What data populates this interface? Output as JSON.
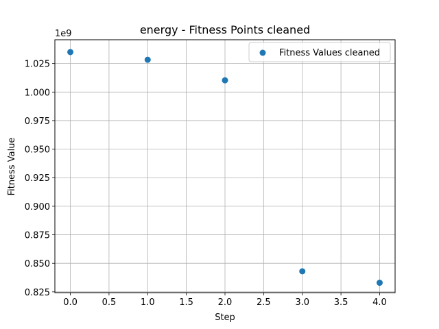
{
  "chart_data": {
    "type": "scatter",
    "title": "energy - Fitness Points cleaned",
    "xlabel": "Step",
    "ylabel": "Fitness Value",
    "y_offset_text": "1e9",
    "xlim": [
      -0.2,
      4.2
    ],
    "ylim": [
      0.8243,
      1.0458
    ],
    "grid": true,
    "legend_position": "upper right",
    "x_ticks": [
      0.0,
      0.5,
      1.0,
      1.5,
      2.0,
      2.5,
      3.0,
      3.5,
      4.0
    ],
    "x_tick_labels": [
      "0.0",
      "0.5",
      "1.0",
      "1.5",
      "2.0",
      "2.5",
      "3.0",
      "3.5",
      "4.0"
    ],
    "y_ticks": [
      0.825,
      0.85,
      0.875,
      0.9,
      0.925,
      0.95,
      0.975,
      1.0,
      1.025
    ],
    "y_tick_labels": [
      "0.825",
      "0.850",
      "0.875",
      "0.900",
      "0.925",
      "0.950",
      "0.975",
      "1.000",
      "1.025"
    ],
    "series": [
      {
        "name": "Fitness Values cleaned",
        "color": "#1f77b4",
        "x": [
          0,
          1,
          2,
          3,
          4
        ],
        "y": [
          1.035,
          1.0283,
          1.0103,
          0.843,
          0.833
        ]
      }
    ]
  }
}
